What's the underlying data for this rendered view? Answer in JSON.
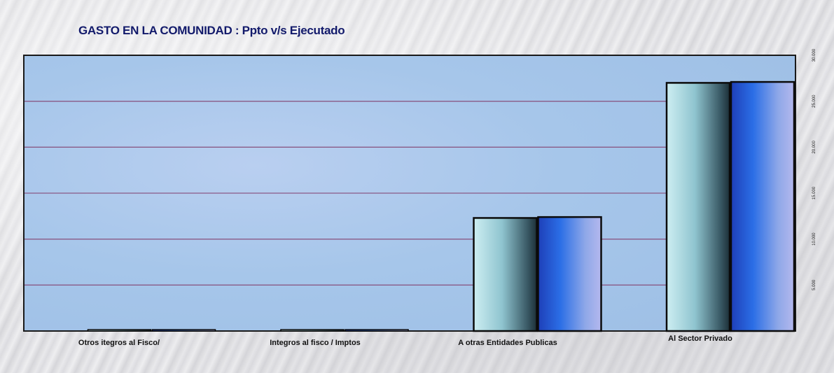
{
  "title": "GASTO EN LA COMUNIDAD : Ppto v/s Ejecutado",
  "colors": {
    "plot_bg": "#a9c8ea",
    "gridline": "#8a5a86",
    "series_ppto": "#9fd3dc",
    "series_ejecutado": "#2f58cf",
    "title": "#121a6b"
  },
  "chart_data": {
    "type": "bar",
    "title": "GASTO EN LA COMUNIDAD : Ppto v/s Ejecutado",
    "categories": [
      "Otros itegros al Fisco/",
      "Integros al fisco / Imptos",
      "A otras Entidades Publicas",
      "Al Sector Privado"
    ],
    "series": [
      {
        "values": [
          0,
          0,
          12300,
          27000
        ]
      },
      {
        "values": [
          0,
          0,
          12400,
          27100
        ]
      }
    ],
    "y_ticks": [
      {
        "value": 5000,
        "label": "5.000"
      },
      {
        "value": 10000,
        "label": "10.000"
      },
      {
        "value": 15000,
        "label": "15.000"
      },
      {
        "value": 20000,
        "label": "20.000"
      },
      {
        "value": 25000,
        "label": "25.000"
      },
      {
        "value": 30000,
        "label": "30.000"
      }
    ],
    "ylim": [
      0,
      30000
    ],
    "xlabel": "",
    "ylabel": "",
    "grid": true,
    "axis_side": "right",
    "legend": "none"
  }
}
